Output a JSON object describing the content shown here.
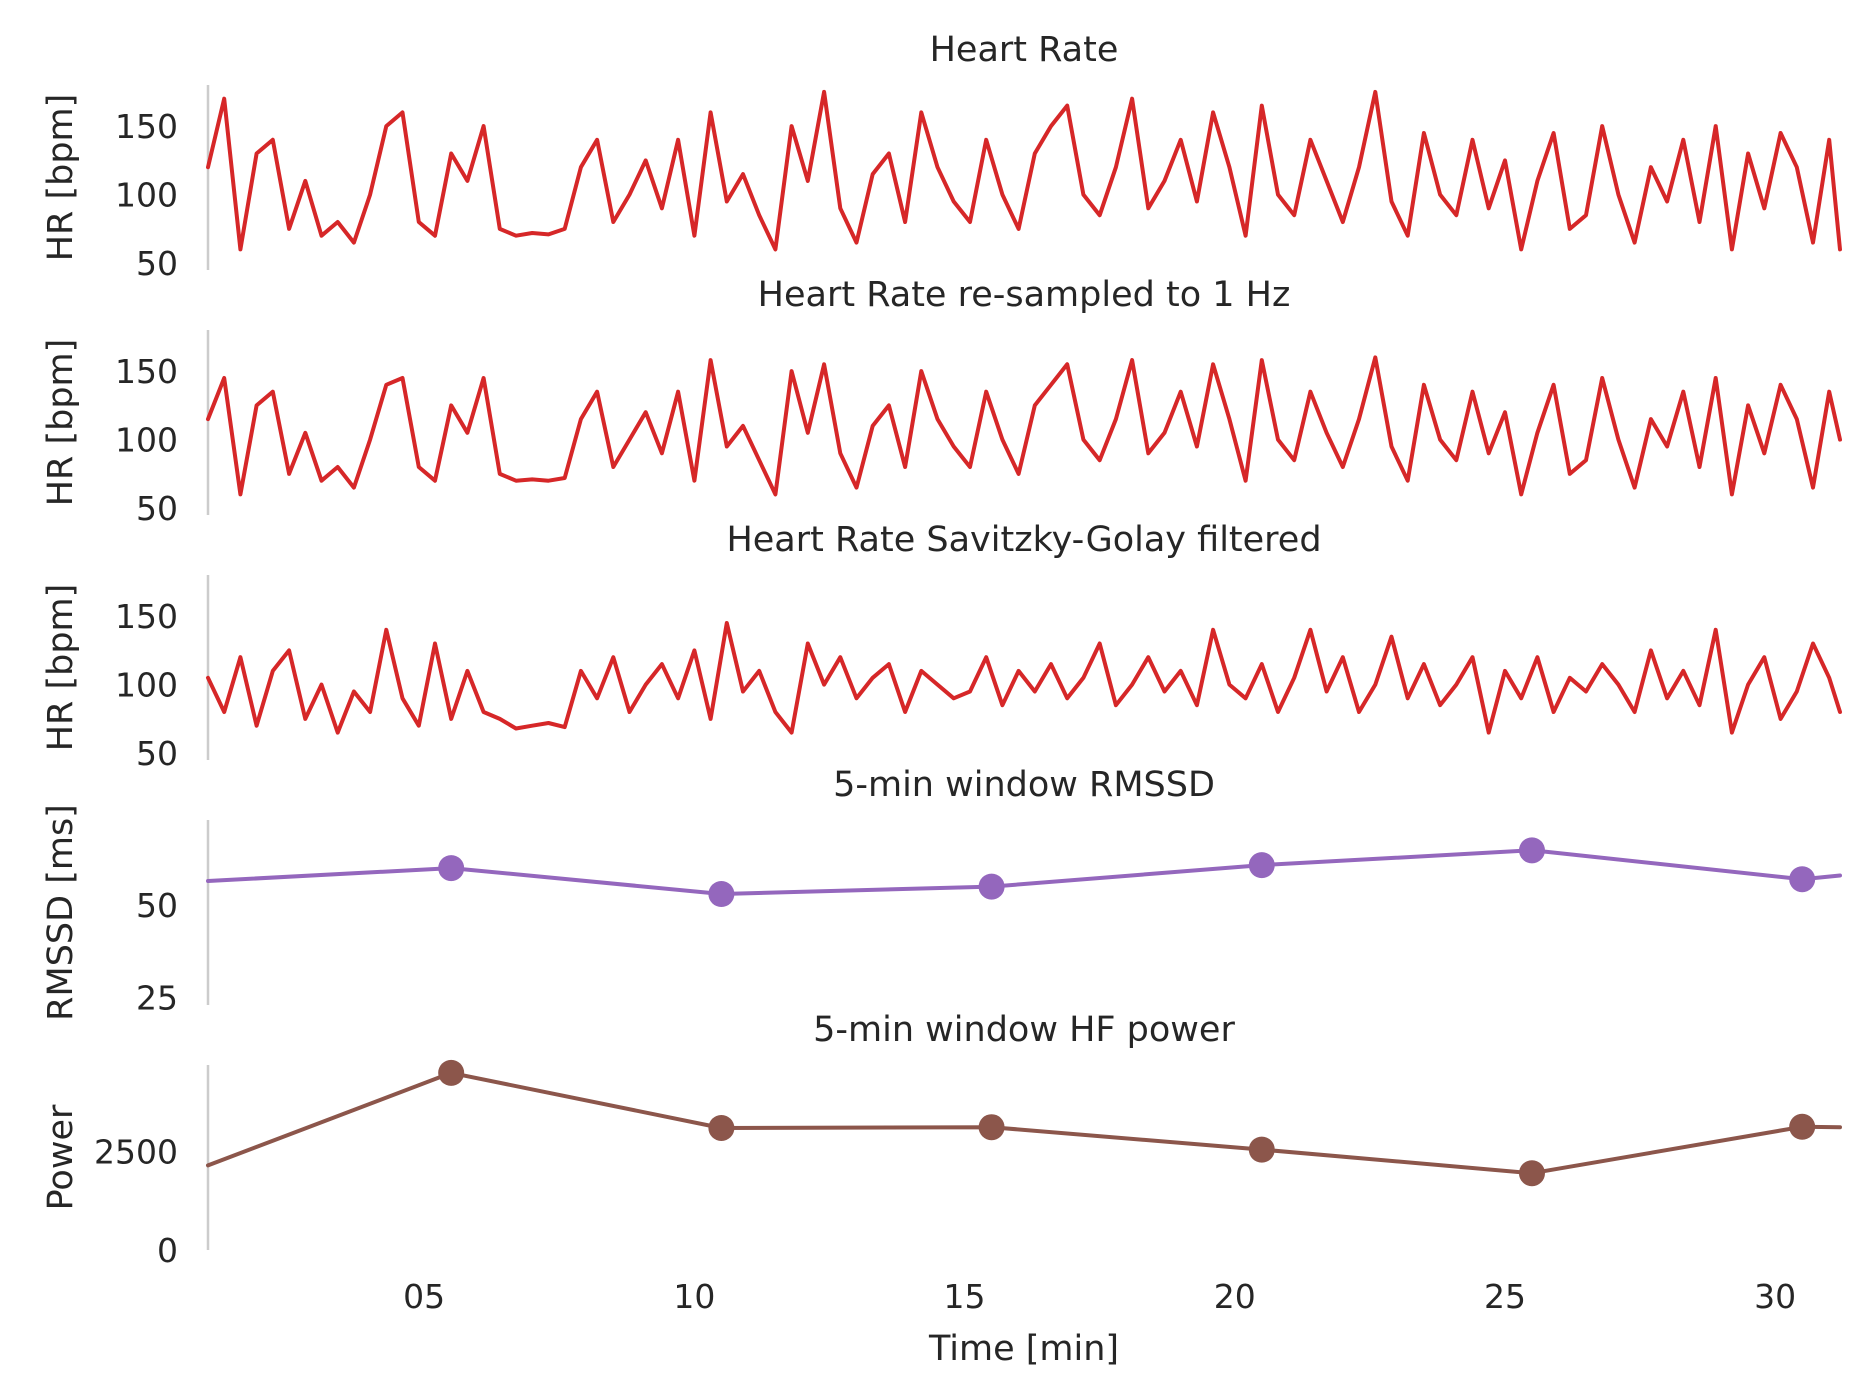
{
  "chart_data": [
    {
      "type": "line",
      "title": "Heart Rate",
      "ylabel": "HR [bpm]",
      "ylim": [
        45,
        180
      ],
      "yticks": [
        "50",
        "100",
        "150"
      ],
      "xlim": [
        1.0,
        31.2
      ],
      "color": "#d62728",
      "series": [
        {
          "x": [
            1.0,
            1.3,
            1.6,
            1.9,
            2.2,
            2.5,
            2.8,
            3.1,
            3.4,
            3.7,
            4.0,
            4.3,
            4.6,
            4.9,
            5.2,
            5.5,
            5.8,
            6.1,
            6.4,
            6.7,
            7.0,
            7.3,
            7.6,
            7.9,
            8.2,
            8.5,
            8.8,
            9.1,
            9.4,
            9.7,
            10.0,
            10.3,
            10.6,
            10.9,
            11.2,
            11.5,
            11.8,
            12.1,
            12.4,
            12.7,
            13.0,
            13.3,
            13.6,
            13.9,
            14.2,
            14.5,
            14.8,
            15.1,
            15.4,
            15.7,
            16.0,
            16.3,
            16.6,
            16.9,
            17.2,
            17.5,
            17.8,
            18.1,
            18.4,
            18.7,
            19.0,
            19.3,
            19.6,
            19.9,
            20.2,
            20.5,
            20.8,
            21.1,
            21.4,
            21.7,
            22.0,
            22.3,
            22.6,
            22.9,
            23.2,
            23.5,
            23.8,
            24.1,
            24.4,
            24.7,
            25.0,
            25.3,
            25.6,
            25.9,
            26.2,
            26.5,
            26.8,
            27.1,
            27.4,
            27.7,
            28.0,
            28.3,
            28.6,
            28.9,
            29.2,
            29.5,
            29.8,
            30.1,
            30.4,
            30.7,
            31.0,
            31.2
          ],
          "y": [
            120,
            170,
            60,
            130,
            140,
            75,
            110,
            70,
            80,
            65,
            100,
            150,
            160,
            80,
            70,
            130,
            110,
            150,
            75,
            70,
            72,
            71,
            75,
            120,
            140,
            80,
            100,
            125,
            90,
            140,
            70,
            160,
            95,
            115,
            85,
            60,
            150,
            110,
            175,
            90,
            65,
            115,
            130,
            80,
            160,
            120,
            95,
            80,
            140,
            100,
            75,
            130,
            150,
            165,
            100,
            85,
            120,
            170,
            90,
            110,
            140,
            95,
            160,
            120,
            70,
            165,
            100,
            85,
            140,
            110,
            80,
            120,
            175,
            95,
            70,
            145,
            100,
            85,
            140,
            90,
            125,
            60,
            110,
            145,
            75,
            85,
            150,
            100,
            65,
            120,
            95,
            140,
            80,
            150,
            60,
            130,
            90,
            145,
            120,
            65,
            140,
            60
          ]
        }
      ]
    },
    {
      "type": "line",
      "title": "Heart Rate re-sampled to 1 Hz",
      "ylabel": "HR [bpm]",
      "ylim": [
        45,
        180
      ],
      "yticks": [
        "50",
        "100",
        "150"
      ],
      "xlim": [
        1.0,
        31.2
      ],
      "color": "#d62728",
      "series": [
        {
          "x": [
            1.0,
            1.3,
            1.6,
            1.9,
            2.2,
            2.5,
            2.8,
            3.1,
            3.4,
            3.7,
            4.0,
            4.3,
            4.6,
            4.9,
            5.2,
            5.5,
            5.8,
            6.1,
            6.4,
            6.7,
            7.0,
            7.3,
            7.6,
            7.9,
            8.2,
            8.5,
            8.8,
            9.1,
            9.4,
            9.7,
            10.0,
            10.3,
            10.6,
            10.9,
            11.2,
            11.5,
            11.8,
            12.1,
            12.4,
            12.7,
            13.0,
            13.3,
            13.6,
            13.9,
            14.2,
            14.5,
            14.8,
            15.1,
            15.4,
            15.7,
            16.0,
            16.3,
            16.6,
            16.9,
            17.2,
            17.5,
            17.8,
            18.1,
            18.4,
            18.7,
            19.0,
            19.3,
            19.6,
            19.9,
            20.2,
            20.5,
            20.8,
            21.1,
            21.4,
            21.7,
            22.0,
            22.3,
            22.6,
            22.9,
            23.2,
            23.5,
            23.8,
            24.1,
            24.4,
            24.7,
            25.0,
            25.3,
            25.6,
            25.9,
            26.2,
            26.5,
            26.8,
            27.1,
            27.4,
            27.7,
            28.0,
            28.3,
            28.6,
            28.9,
            29.2,
            29.5,
            29.8,
            30.1,
            30.4,
            30.7,
            31.0,
            31.2
          ],
          "y": [
            115,
            145,
            60,
            125,
            135,
            75,
            105,
            70,
            80,
            65,
            100,
            140,
            145,
            80,
            70,
            125,
            105,
            145,
            75,
            70,
            71,
            70,
            72,
            115,
            135,
            80,
            100,
            120,
            90,
            135,
            70,
            158,
            95,
            110,
            85,
            60,
            150,
            105,
            155,
            90,
            65,
            110,
            125,
            80,
            150,
            115,
            95,
            80,
            135,
            100,
            75,
            125,
            140,
            155,
            100,
            85,
            115,
            158,
            90,
            105,
            135,
            95,
            155,
            115,
            70,
            158,
            100,
            85,
            135,
            105,
            80,
            115,
            160,
            95,
            70,
            140,
            100,
            85,
            135,
            90,
            120,
            60,
            105,
            140,
            75,
            85,
            145,
            100,
            65,
            115,
            95,
            135,
            80,
            145,
            60,
            125,
            90,
            140,
            115,
            65,
            135,
            100
          ]
        }
      ]
    },
    {
      "type": "line",
      "title": "Heart Rate Savitzky-Golay filtered",
      "ylabel": "HR [bpm]",
      "ylim": [
        45,
        180
      ],
      "yticks": [
        "50",
        "100",
        "150"
      ],
      "xlim": [
        1.0,
        31.2
      ],
      "color": "#d62728",
      "series": [
        {
          "x": [
            1.0,
            1.3,
            1.6,
            1.9,
            2.2,
            2.5,
            2.8,
            3.1,
            3.4,
            3.7,
            4.0,
            4.3,
            4.6,
            4.9,
            5.2,
            5.5,
            5.8,
            6.1,
            6.4,
            6.7,
            7.0,
            7.3,
            7.6,
            7.9,
            8.2,
            8.5,
            8.8,
            9.1,
            9.4,
            9.7,
            10.0,
            10.3,
            10.6,
            10.9,
            11.2,
            11.5,
            11.8,
            12.1,
            12.4,
            12.7,
            13.0,
            13.3,
            13.6,
            13.9,
            14.2,
            14.5,
            14.8,
            15.1,
            15.4,
            15.7,
            16.0,
            16.3,
            16.6,
            16.9,
            17.2,
            17.5,
            17.8,
            18.1,
            18.4,
            18.7,
            19.0,
            19.3,
            19.6,
            19.9,
            20.2,
            20.5,
            20.8,
            21.1,
            21.4,
            21.7,
            22.0,
            22.3,
            22.6,
            22.9,
            23.2,
            23.5,
            23.8,
            24.1,
            24.4,
            24.7,
            25.0,
            25.3,
            25.6,
            25.9,
            26.2,
            26.5,
            26.8,
            27.1,
            27.4,
            27.7,
            28.0,
            28.3,
            28.6,
            28.9,
            29.2,
            29.5,
            29.8,
            30.1,
            30.4,
            30.7,
            31.0,
            31.2
          ],
          "y": [
            105,
            80,
            120,
            70,
            110,
            125,
            75,
            100,
            65,
            95,
            80,
            140,
            90,
            70,
            130,
            75,
            110,
            80,
            75,
            68,
            70,
            72,
            69,
            110,
            90,
            120,
            80,
            100,
            115,
            90,
            125,
            75,
            145,
            95,
            110,
            80,
            65,
            130,
            100,
            120,
            90,
            105,
            115,
            80,
            110,
            100,
            90,
            95,
            120,
            85,
            110,
            95,
            115,
            90,
            105,
            130,
            85,
            100,
            120,
            95,
            110,
            85,
            140,
            100,
            90,
            115,
            80,
            105,
            140,
            95,
            120,
            80,
            100,
            135,
            90,
            115,
            85,
            100,
            120,
            65,
            110,
            90,
            120,
            80,
            105,
            95,
            115,
            100,
            80,
            125,
            90,
            110,
            85,
            140,
            65,
            100,
            120,
            75,
            95,
            130,
            105,
            80
          ]
        }
      ]
    },
    {
      "type": "line",
      "title": "5-min window RMSSD",
      "ylabel": "RMSSD [ms]",
      "ylim": [
        23,
        73
      ],
      "yticks": [
        "25",
        "50"
      ],
      "xlim": [
        1.0,
        31.2
      ],
      "color": "#9467bd",
      "series": [
        {
          "x": [
            1.0,
            5.5,
            10.5,
            15.5,
            20.5,
            25.5,
            30.5,
            31.2
          ],
          "y": [
            56.5,
            60.0,
            53.0,
            55.0,
            60.8,
            64.8,
            57.0,
            58.0
          ],
          "markers": [
            false,
            true,
            true,
            true,
            true,
            true,
            true,
            false
          ]
        }
      ]
    },
    {
      "type": "line",
      "title": "5-min window HF power",
      "ylabel": "Power",
      "ylim": [
        0,
        4700
      ],
      "yticks": [
        "0",
        "2500"
      ],
      "xlim": [
        1.0,
        31.2
      ],
      "xticks": [
        "05",
        "10",
        "15",
        "20",
        "25",
        "30"
      ],
      "xtick_values": [
        5.0,
        10.0,
        15.0,
        20.0,
        25.0,
        30.0
      ],
      "xlabel": "Time [min]",
      "color": "#8c564b",
      "series": [
        {
          "x": [
            1.0,
            5.5,
            10.5,
            15.5,
            20.5,
            25.5,
            30.5,
            31.2
          ],
          "y": [
            2150,
            4500,
            3100,
            3120,
            2550,
            1950,
            3130,
            3120
          ],
          "markers": [
            false,
            true,
            true,
            true,
            true,
            true,
            true,
            false
          ]
        }
      ]
    }
  ]
}
